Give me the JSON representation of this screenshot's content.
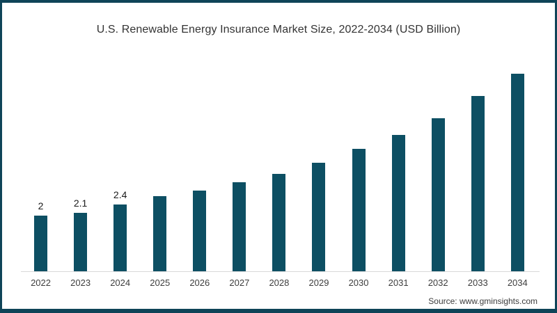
{
  "title": "U.S. Renewable Energy Insurance Market Size, 2022-2034 (USD Billion)",
  "source": "Source: www.gminsights.com",
  "colors": {
    "bar": "#0d4f63",
    "frame_border": "#0f4458",
    "axis_line": "#d9d9d9",
    "title_text": "#333333",
    "tick_text": "#3d3d3d"
  },
  "chart_data": {
    "type": "bar",
    "title": "U.S. Renewable Energy Insurance Market Size, 2022-2034 (USD Billion)",
    "unit": "USD Billion",
    "categories": [
      "2022",
      "2023",
      "2024",
      "2025",
      "2026",
      "2027",
      "2028",
      "2029",
      "2030",
      "2031",
      "2032",
      "2033",
      "2034"
    ],
    "values": [
      2,
      2.1,
      2.4,
      2.7,
      2.9,
      3.2,
      3.5,
      3.9,
      4.4,
      4.9,
      5.5,
      6.3,
      7.1
    ],
    "data_labels": [
      "2",
      "2.1",
      "2.4",
      "",
      "",
      "",
      "",
      "",
      "",
      "",
      "",
      "",
      ""
    ],
    "xlabel": "",
    "ylabel": "",
    "ylim": [
      0,
      7.5
    ],
    "grid": false,
    "legend": false,
    "y_axis_visible": false,
    "source_note": "Source: www.gminsights.com"
  }
}
